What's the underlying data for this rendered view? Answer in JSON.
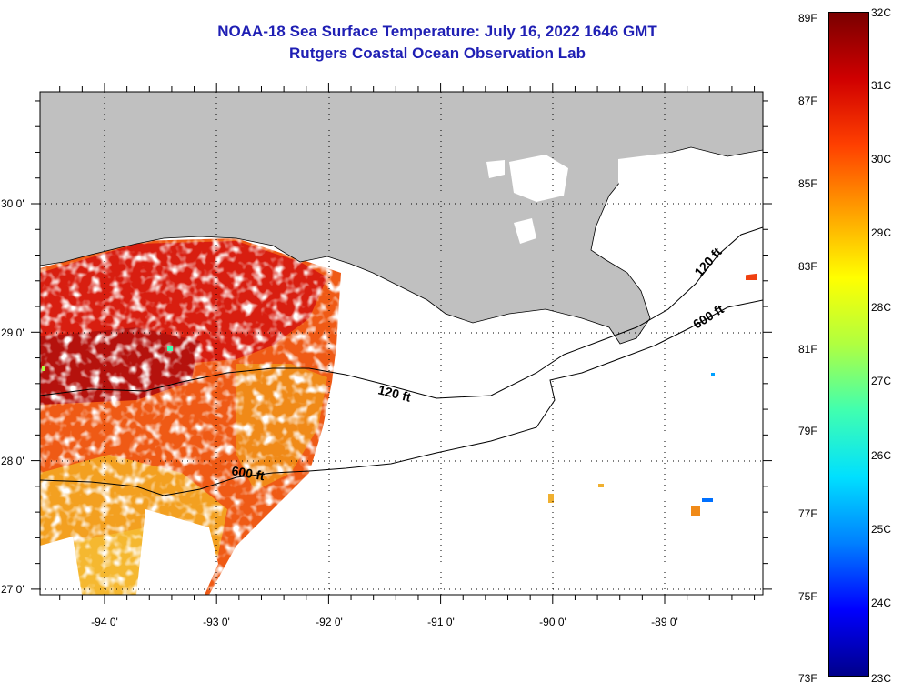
{
  "header": {
    "title_line1": "NOAA-18 Sea Surface Temperature:  July 16, 2022 1646 GMT",
    "title_line2": "Rutgers Coastal Ocean Observation Lab"
  },
  "map": {
    "lon_labels": [
      "-94 0'",
      "-93 0'",
      "-92 0'",
      "-91 0'",
      "-90 0'",
      "-89 0'"
    ],
    "lat_labels": [
      "30 0'",
      "29 0'",
      "28 0'",
      "27 0'"
    ],
    "contour_labels": {
      "c120_west": "120 ft",
      "c120_east": "120 ft",
      "c600_west": "600 ft",
      "c600_east": "600 ft"
    },
    "colors": {
      "land": "#c0c0c0",
      "no_data": "#ffffff",
      "contour": "#000000"
    }
  },
  "colorbar": {
    "fahrenheit_labels": [
      "89F",
      "87F",
      "85F",
      "83F",
      "81F",
      "79F",
      "77F",
      "75F",
      "73F"
    ],
    "celsius_labels": [
      "32C",
      "31C",
      "30C",
      "29C",
      "28C",
      "27C",
      "26C",
      "25C",
      "24C",
      "23C"
    ],
    "palette": [
      "#00008b",
      "#0000ff",
      "#0080ff",
      "#00e0ff",
      "#40ffb0",
      "#b0ff40",
      "#ffff00",
      "#ffa000",
      "#ff4000",
      "#d00000",
      "#7a0000"
    ]
  }
}
